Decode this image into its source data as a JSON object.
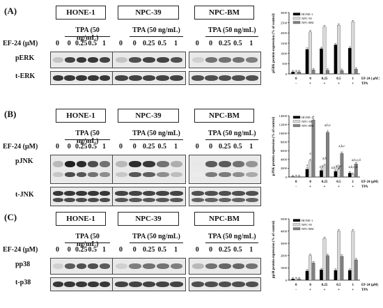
{
  "cell_lines": [
    "HONE-1",
    "NPC-39",
    "NPC-BM"
  ],
  "treatment_label": "TPA (50 ng/mL)",
  "dose_label_A": "EF-24 (μM)",
  "dose_label_BC": "EF-24 (μM)",
  "doses": [
    "0",
    "0",
    "0.25",
    "0.5",
    "1"
  ],
  "panels": [
    {
      "letter": "(A)",
      "target": "pERK",
      "loading": "t-ERK",
      "band_intensity": {
        "target": [
          [
            0.25,
            0.8,
            0.85,
            0.85,
            0.8
          ],
          [
            0.25,
            0.75,
            0.8,
            0.8,
            0.75
          ],
          [
            0.2,
            0.6,
            0.6,
            0.6,
            0.55
          ]
        ],
        "loading": [
          [
            0.85,
            0.85,
            0.85,
            0.85,
            0.85
          ],
          [
            0.8,
            0.8,
            0.8,
            0.8,
            0.8
          ],
          [
            0.75,
            0.75,
            0.75,
            0.75,
            0.75
          ]
        ]
      }
    },
    {
      "letter": "(B)",
      "target": "pJNK",
      "loading": "t-JNK",
      "band_intensity": {
        "target": [
          [
            0.3,
            0.95,
            0.9,
            0.75,
            0.6
          ],
          [
            0.3,
            0.9,
            0.85,
            0.6,
            0.35
          ],
          [
            0.1,
            0.7,
            0.7,
            0.6,
            0.45
          ]
        ],
        "loading": [
          [
            0.85,
            0.85,
            0.85,
            0.85,
            0.85
          ],
          [
            0.8,
            0.8,
            0.8,
            0.8,
            0.8
          ],
          [
            0.75,
            0.75,
            0.75,
            0.75,
            0.75
          ]
        ]
      }
    },
    {
      "letter": "(C)",
      "target": "pp38",
      "loading": "t-p38",
      "band_intensity": {
        "target": [
          [
            0.2,
            0.7,
            0.75,
            0.75,
            0.7
          ],
          [
            0.2,
            0.55,
            0.6,
            0.6,
            0.55
          ],
          [
            0.3,
            0.6,
            0.65,
            0.65,
            0.6
          ]
        ],
        "loading": [
          [
            0.85,
            0.85,
            0.85,
            0.85,
            0.85
          ],
          [
            0.8,
            0.8,
            0.8,
            0.8,
            0.8
          ],
          [
            0.75,
            0.75,
            0.75,
            0.75,
            0.75
          ]
        ]
      }
    }
  ],
  "chart_data": [
    {
      "type": "bar",
      "ylabel": "pERK protein expression (% of control)",
      "ylim": [
        0,
        3000
      ],
      "yticks": [
        0,
        500,
        1000,
        1500,
        2000,
        2500,
        3000
      ],
      "categories": [
        "0",
        "0",
        "0.25",
        "0.5",
        "1"
      ],
      "ef24_row_label": "EF-24 ( μM )",
      "tpa_row": [
        "-",
        "+",
        "+",
        "+",
        "+"
      ],
      "tpa_row_label": "TPA",
      "series": [
        {
          "name": "HONE-1",
          "color": "#000000",
          "values": [
            100,
            1200,
            1230,
            1420,
            1260
          ]
        },
        {
          "name": "NPC-39",
          "color": "#d9d9d9",
          "values": [
            100,
            2050,
            2300,
            2380,
            2550
          ]
        },
        {
          "name": "NPC-BM",
          "color": "#7f7f7f",
          "values": [
            100,
            200,
            180,
            170,
            230
          ]
        }
      ],
      "legend": "top-left",
      "annotations": []
    },
    {
      "type": "bar",
      "ylabel": "pJNK protein expression (% of control)",
      "ylim": [
        0,
        14000
      ],
      "yticks": [
        0,
        2000,
        4000,
        6000,
        8000,
        10000,
        12000,
        14000
      ],
      "categories": [
        "0",
        "0",
        "0.25",
        "0.5",
        "1"
      ],
      "ef24_row_label": "EF-24 (μM)",
      "tpa_row": [
        "-",
        "+",
        "+",
        "+",
        "+"
      ],
      "tpa_row_label": "TPA",
      "series": [
        {
          "name": "HONE-1",
          "color": "#000000",
          "values": [
            100,
            1800,
            1500,
            1300,
            900
          ]
        },
        {
          "name": "NPC-39",
          "color": "#d9d9d9",
          "values": [
            100,
            3700,
            2600,
            1700,
            600
          ]
        },
        {
          "name": "NPC-BM",
          "color": "#7f7f7f",
          "values": [
            100,
            13000,
            10200,
            5400,
            3000
          ]
        }
      ],
      "legend": "top-left",
      "annotations": [
        "a",
        "a",
        "a",
        "a,b",
        "a,b",
        "a,b,c",
        "a,b,c",
        "a,b,c",
        "a,b,c,d",
        "a,b,c,d",
        "a,b,c,d"
      ]
    },
    {
      "type": "bar",
      "ylabel": "pp38 protein expression (% of control)",
      "ylim": [
        0,
        5000
      ],
      "yticks": [
        0,
        1000,
        2000,
        3000,
        4000,
        5000
      ],
      "categories": [
        "0",
        "0",
        "0.25",
        "0.5",
        "1"
      ],
      "ef24_row_label": "EF-24 (μM)",
      "tpa_row": [
        "-",
        "+",
        "+",
        "+",
        "+"
      ],
      "tpa_row_label": "TPA",
      "series": [
        {
          "name": "HONE-1",
          "color": "#000000",
          "values": [
            100,
            750,
            850,
            800,
            800
          ]
        },
        {
          "name": "NPC-39",
          "color": "#d9d9d9",
          "values": [
            100,
            2000,
            3400,
            4000,
            4000
          ]
        },
        {
          "name": "NPC-BM",
          "color": "#7f7f7f",
          "values": [
            100,
            1400,
            2000,
            1950,
            1650
          ]
        }
      ],
      "legend": "top-left",
      "annotations": []
    }
  ]
}
